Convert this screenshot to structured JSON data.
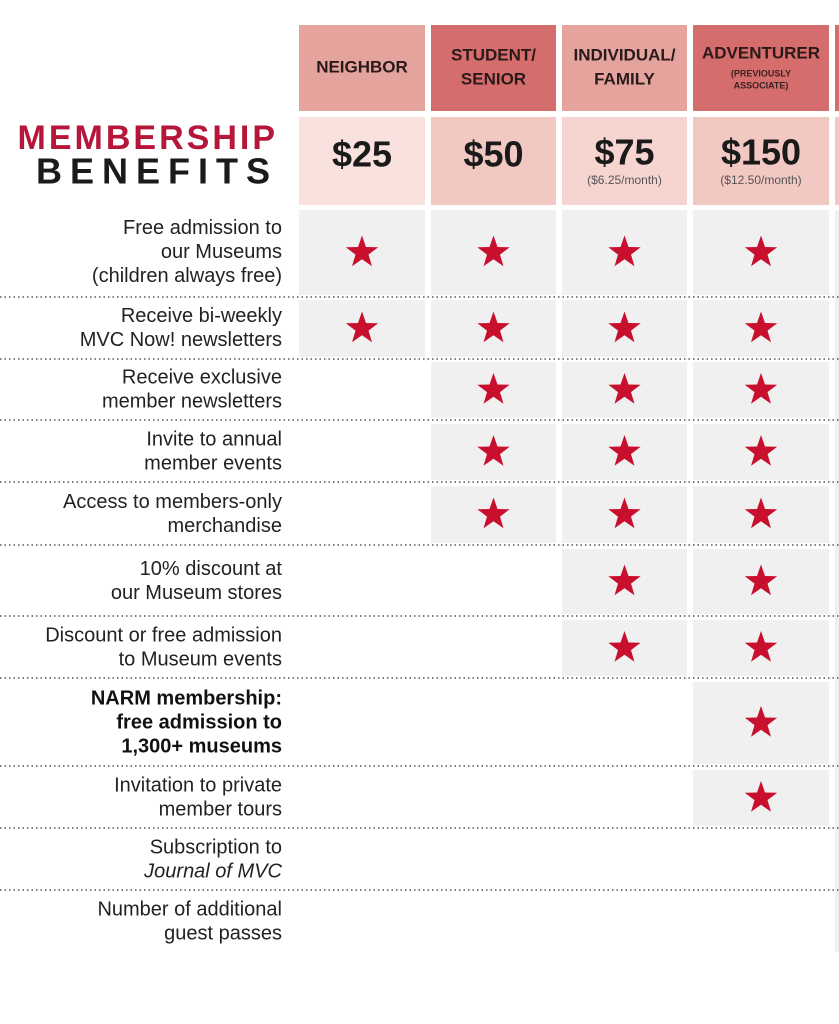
{
  "title": {
    "line1": "MEMBERSHIP",
    "line2": "BENEFITS"
  },
  "tiers": [
    {
      "name": [
        "NEIGHBOR"
      ],
      "price": "$25"
    },
    {
      "name": [
        "STUDENT/",
        "SENIOR"
      ],
      "price": "$50"
    },
    {
      "name": [
        "INDIVIDUAL/",
        "FAMILY"
      ],
      "price": "$75",
      "monthly": "($6.25/month)"
    },
    {
      "name": [
        "ADVENTURER"
      ],
      "note": [
        "(PREVIOUSLY",
        "ASSOCIATE)"
      ],
      "price": "$150",
      "monthly": "($12.50/month)"
    }
  ],
  "rows": [
    {
      "lines": [
        "Free admission to",
        "our Museums",
        "(children always free)"
      ],
      "included": [
        true,
        true,
        true,
        true
      ]
    },
    {
      "lines": [
        "Receive bi-weekly",
        "MVC Now! newsletters"
      ],
      "included": [
        true,
        true,
        true,
        true
      ]
    },
    {
      "lines": [
        "Receive exclusive",
        "member newsletters"
      ],
      "included": [
        false,
        true,
        true,
        true
      ]
    },
    {
      "lines": [
        "Invite to annual",
        "member events"
      ],
      "included": [
        false,
        true,
        true,
        true
      ]
    },
    {
      "lines": [
        "Access to members-only",
        "merchandise"
      ],
      "included": [
        false,
        true,
        true,
        true
      ]
    },
    {
      "lines": [
        "10% discount at",
        "our Museum stores"
      ],
      "included": [
        false,
        false,
        true,
        true
      ]
    },
    {
      "lines": [
        "Discount or free admission",
        "to Museum events"
      ],
      "included": [
        false,
        false,
        true,
        true
      ]
    },
    {
      "lines": [
        "NARM membership:",
        "free admission to",
        "1,300+ museums"
      ],
      "bold": true,
      "included": [
        false,
        false,
        false,
        true
      ]
    },
    {
      "lines": [
        "Invitation to private",
        "member tours"
      ],
      "included": [
        false,
        false,
        false,
        true
      ]
    },
    {
      "lines": [
        "Subscription to",
        "Journal of MVC"
      ],
      "italic_lines": [
        1
      ],
      "included": [
        false,
        false,
        false,
        false
      ]
    },
    {
      "lines": [
        "Number of additional",
        "guest passes"
      ],
      "included": [
        false,
        false,
        false,
        false
      ]
    }
  ]
}
